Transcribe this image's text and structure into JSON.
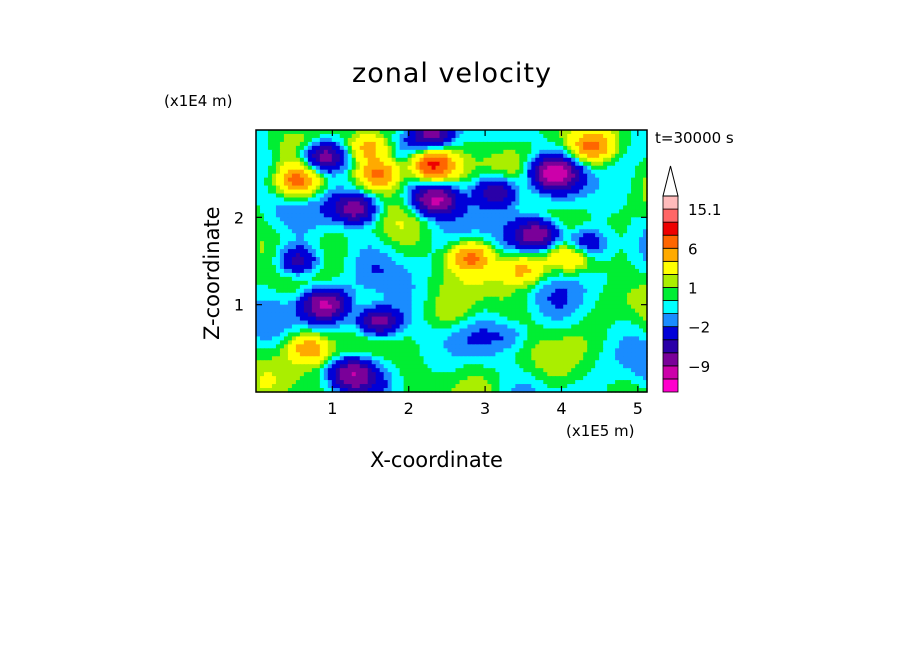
{
  "chart_data": {
    "type": "heatmap",
    "title": "zonal velocity",
    "xlabel": "X-coordinate",
    "ylabel": "Z-coordinate",
    "x_unit": "(x1E5 m)",
    "y_unit": "(x1E4 m)",
    "time_label": "t=30000 s",
    "xlim": [
      0,
      5.12
    ],
    "ylim": [
      0,
      3.0
    ],
    "x_ticks": [
      1,
      2,
      3,
      4,
      5
    ],
    "x_tick_labels": [
      "1",
      "2",
      "3",
      "4",
      "5"
    ],
    "y_ticks": [
      1,
      2
    ],
    "y_tick_labels": [
      "1",
      "2"
    ],
    "colorbar": {
      "bounds": [
        -15,
        -12,
        -9,
        -6,
        -4,
        -2,
        -1,
        0,
        1,
        2,
        4,
        6,
        9,
        12,
        15.1
      ],
      "colors": [
        "#ff00cc",
        "#cc00aa",
        "#7a0099",
        "#2a00a8",
        "#0000d8",
        "#1a8cff",
        "#00ffff",
        "#00ee33",
        "#aaee00",
        "#ffff00",
        "#ffaa00",
        "#ff6600",
        "#ee0000",
        "#ff6666",
        "#ffbbbb"
      ],
      "labels": [
        {
          "value": 15.1,
          "text": "15.1"
        },
        {
          "value": 6,
          "text": "6"
        },
        {
          "value": 1,
          "text": "1"
        },
        {
          "value": -2,
          "text": "−2"
        },
        {
          "value": -9,
          "text": "−9"
        }
      ]
    },
    "features": [
      {
        "x": 0.9,
        "z": 1.0,
        "u": -9
      },
      {
        "x": 1.6,
        "z": 0.8,
        "u": -9
      },
      {
        "x": 1.3,
        "z": 2.1,
        "u": -8
      },
      {
        "x": 0.55,
        "z": 1.5,
        "u": -6
      },
      {
        "x": 0.9,
        "z": 2.7,
        "u": -8
      },
      {
        "x": 2.35,
        "z": 2.2,
        "u": -10
      },
      {
        "x": 2.3,
        "z": 2.95,
        "u": -7
      },
      {
        "x": 3.15,
        "z": 2.3,
        "u": -6
      },
      {
        "x": 3.7,
        "z": 1.8,
        "u": -9
      },
      {
        "x": 3.9,
        "z": 2.5,
        "u": -10
      },
      {
        "x": 4.3,
        "z": 1.7,
        "u": -5
      },
      {
        "x": 1.25,
        "z": 0.2,
        "u": -8
      },
      {
        "x": 0.55,
        "z": 2.4,
        "u": 7
      },
      {
        "x": 1.65,
        "z": 2.5,
        "u": 7
      },
      {
        "x": 2.3,
        "z": 2.6,
        "u": 10
      },
      {
        "x": 2.8,
        "z": 1.55,
        "u": 6
      },
      {
        "x": 3.5,
        "z": 1.4,
        "u": 5
      },
      {
        "x": 4.15,
        "z": 1.55,
        "u": 4
      },
      {
        "x": 0.7,
        "z": 0.5,
        "u": 6
      },
      {
        "x": 1.5,
        "z": 2.8,
        "u": 5
      },
      {
        "x": 3.35,
        "z": 0.65,
        "u": -2
      },
      {
        "x": 2.6,
        "z": 0.9,
        "u": 1.5
      },
      {
        "x": 2.8,
        "z": 0.35,
        "u": 0.5
      },
      {
        "x": 4.4,
        "z": 2.8,
        "u": 6
      },
      {
        "x": 4.7,
        "z": 1.0,
        "u": 0.5
      }
    ]
  }
}
